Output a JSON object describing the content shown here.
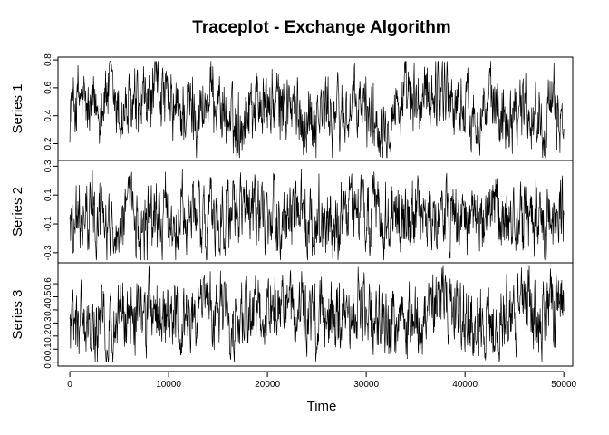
{
  "chart_data": {
    "type": "line",
    "title": "Traceplot - Exchange Algorithm",
    "xlabel": "Time",
    "xlim": [
      -1200,
      50900
    ],
    "x_ticks": [
      0,
      10000,
      20000,
      30000,
      40000,
      50000
    ],
    "x_tick_labels": [
      "0",
      "10000",
      "20000",
      "30000",
      "40000",
      "50000"
    ],
    "n_iterations": 50000,
    "grid": false,
    "panels": [
      {
        "name": "Series 1",
        "ylabel": "Series 1",
        "ylim": [
          0.08,
          0.82
        ],
        "y_ticks": [
          0.2,
          0.4,
          0.6,
          0.8
        ],
        "y_tick_labels": [
          "0.2",
          "0.4",
          "0.6",
          "0.8"
        ],
        "approx_mean": 0.43,
        "approx_range": [
          0.1,
          0.79
        ],
        "samples": [
          [
            0,
            0.45
          ],
          [
            1000,
            0.52
          ],
          [
            2000,
            0.4
          ],
          [
            3000,
            0.47
          ],
          [
            4000,
            0.6
          ],
          [
            5000,
            0.38
          ],
          [
            6000,
            0.45
          ],
          [
            7000,
            0.42
          ],
          [
            8000,
            0.5
          ],
          [
            9000,
            0.62
          ],
          [
            10000,
            0.44
          ],
          [
            11000,
            0.4
          ],
          [
            12000,
            0.47
          ],
          [
            13000,
            0.42
          ],
          [
            14000,
            0.5
          ],
          [
            15000,
            0.55
          ],
          [
            16000,
            0.35
          ],
          [
            17000,
            0.3
          ],
          [
            18000,
            0.47
          ],
          [
            19000,
            0.52
          ],
          [
            20000,
            0.48
          ],
          [
            21000,
            0.45
          ],
          [
            22000,
            0.5
          ],
          [
            23000,
            0.38
          ],
          [
            24000,
            0.4
          ],
          [
            25000,
            0.42
          ],
          [
            26000,
            0.45
          ],
          [
            27000,
            0.4
          ],
          [
            28000,
            0.42
          ],
          [
            29000,
            0.44
          ],
          [
            30000,
            0.46
          ],
          [
            31000,
            0.35
          ],
          [
            32000,
            0.4
          ],
          [
            33000,
            0.48
          ],
          [
            34000,
            0.5
          ],
          [
            35000,
            0.45
          ],
          [
            36000,
            0.52
          ],
          [
            37000,
            0.58
          ],
          [
            38000,
            0.62
          ],
          [
            39000,
            0.45
          ],
          [
            40000,
            0.48
          ],
          [
            41000,
            0.4
          ],
          [
            42000,
            0.45
          ],
          [
            43000,
            0.47
          ],
          [
            44000,
            0.42
          ],
          [
            45000,
            0.47
          ],
          [
            46000,
            0.5
          ],
          [
            47000,
            0.4
          ],
          [
            48000,
            0.38
          ],
          [
            49000,
            0.42
          ],
          [
            50000,
            0.4
          ]
        ]
      },
      {
        "name": "Series 2",
        "ylabel": "Series 2",
        "ylim": [
          -0.37,
          0.34
        ],
        "y_ticks": [
          -0.3,
          -0.1,
          0.1,
          0.3
        ],
        "y_tick_labels": [
          "-0.3",
          "-0.1",
          "0.1",
          "0.3"
        ],
        "approx_mean": -0.05,
        "approx_range": [
          -0.35,
          0.32
        ],
        "samples": [
          [
            0,
            -0.05
          ],
          [
            1000,
            -0.1
          ],
          [
            2000,
            -0.05
          ],
          [
            3000,
            -0.02
          ],
          [
            4000,
            -0.12
          ],
          [
            5000,
            -0.08
          ],
          [
            6000,
            -0.05
          ],
          [
            7000,
            -0.1
          ],
          [
            8000,
            -0.06
          ],
          [
            9000,
            -0.08
          ],
          [
            10000,
            -0.05
          ],
          [
            11000,
            -0.1
          ],
          [
            12000,
            -0.07
          ],
          [
            13000,
            -0.04
          ],
          [
            14000,
            -0.08
          ],
          [
            15000,
            -0.03
          ],
          [
            16000,
            -0.02
          ],
          [
            17000,
            -0.05
          ],
          [
            18000,
            -0.04
          ],
          [
            19000,
            -0.08
          ],
          [
            20000,
            -0.1
          ],
          [
            21000,
            -0.05
          ],
          [
            22000,
            -0.06
          ],
          [
            23000,
            -0.04
          ],
          [
            24000,
            -0.08
          ],
          [
            25000,
            -0.05
          ],
          [
            26000,
            -0.08
          ],
          [
            27000,
            -0.1
          ],
          [
            28000,
            -0.06
          ],
          [
            29000,
            -0.02
          ],
          [
            30000,
            -0.05
          ],
          [
            31000,
            -0.08
          ],
          [
            32000,
            -0.06
          ],
          [
            33000,
            -0.03
          ],
          [
            34000,
            -0.07
          ],
          [
            35000,
            -0.05
          ],
          [
            36000,
            -0.04
          ],
          [
            37000,
            -0.06
          ],
          [
            38000,
            -0.05
          ],
          [
            39000,
            -0.08
          ],
          [
            40000,
            -0.06
          ],
          [
            41000,
            -0.04
          ],
          [
            42000,
            -0.1
          ],
          [
            43000,
            -0.07
          ],
          [
            44000,
            -0.06
          ],
          [
            45000,
            -0.04
          ],
          [
            46000,
            -0.08
          ],
          [
            47000,
            -0.06
          ],
          [
            48000,
            -0.05
          ],
          [
            49000,
            -0.07
          ],
          [
            50000,
            -0.05
          ]
        ]
      },
      {
        "name": "Series 3",
        "ylabel": "Series 3",
        "ylim": [
          -0.03,
          0.76
        ],
        "y_ticks": [
          0.0,
          0.1,
          0.2,
          0.3,
          0.4,
          0.5,
          0.6
        ],
        "y_tick_labels": [
          "0.0",
          "0.1",
          "0.2",
          "0.3",
          "0.4",
          "0.5",
          "0.6"
        ],
        "approx_mean": 0.32,
        "approx_range": [
          0.0,
          0.74
        ],
        "samples": [
          [
            0,
            0.25
          ],
          [
            1000,
            0.35
          ],
          [
            2000,
            0.3
          ],
          [
            3000,
            0.25
          ],
          [
            4000,
            0.3
          ],
          [
            5000,
            0.35
          ],
          [
            6000,
            0.32
          ],
          [
            7000,
            0.38
          ],
          [
            8000,
            0.4
          ],
          [
            9000,
            0.45
          ],
          [
            10000,
            0.35
          ],
          [
            11000,
            0.3
          ],
          [
            12000,
            0.35
          ],
          [
            13000,
            0.38
          ],
          [
            14000,
            0.4
          ],
          [
            15000,
            0.35
          ],
          [
            16000,
            0.3
          ],
          [
            17000,
            0.28
          ],
          [
            18000,
            0.35
          ],
          [
            19000,
            0.32
          ],
          [
            20000,
            0.38
          ],
          [
            21000,
            0.4
          ],
          [
            22000,
            0.42
          ],
          [
            23000,
            0.35
          ],
          [
            24000,
            0.3
          ],
          [
            25000,
            0.32
          ],
          [
            26000,
            0.35
          ],
          [
            27000,
            0.38
          ],
          [
            28000,
            0.3
          ],
          [
            29000,
            0.45
          ],
          [
            30000,
            0.38
          ],
          [
            31000,
            0.3
          ],
          [
            32000,
            0.25
          ],
          [
            33000,
            0.3
          ],
          [
            34000,
            0.28
          ],
          [
            35000,
            0.35
          ],
          [
            36000,
            0.32
          ],
          [
            37000,
            0.38
          ],
          [
            38000,
            0.45
          ],
          [
            39000,
            0.42
          ],
          [
            40000,
            0.35
          ],
          [
            41000,
            0.3
          ],
          [
            42000,
            0.32
          ],
          [
            43000,
            0.28
          ],
          [
            44000,
            0.35
          ],
          [
            45000,
            0.38
          ],
          [
            46000,
            0.55
          ],
          [
            47000,
            0.35
          ],
          [
            48000,
            0.3
          ],
          [
            49000,
            0.4
          ],
          [
            50000,
            0.42
          ]
        ]
      }
    ]
  }
}
